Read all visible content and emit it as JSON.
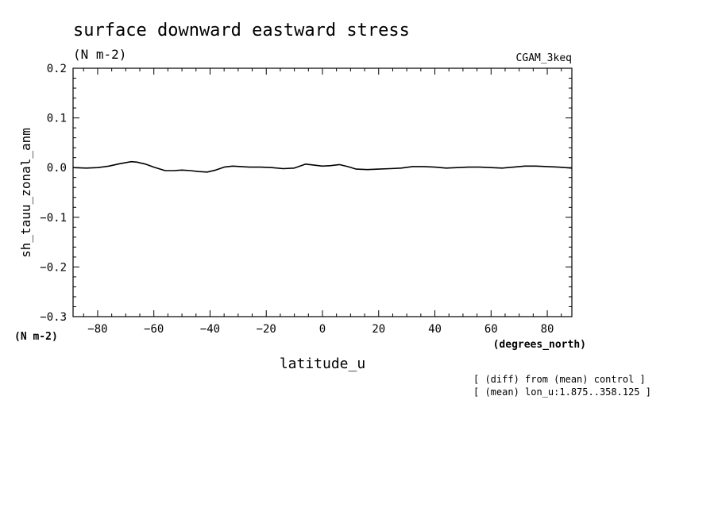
{
  "title": "surface downward eastward stress",
  "units": "(N m-2)",
  "dataset_label": "CGAM_3keq",
  "notes": [
    "[ (diff) from (mean) control ]",
    "[ (mean) lon_u:1.875..358.125 ]"
  ],
  "chart_data": {
    "type": "line",
    "xlabel": "latitude_u",
    "xunits": "(degrees_north)",
    "ylabel": "sh_tauu_zonal_anm",
    "yunits": "(N m-2)",
    "xlim": [
      -88.75,
      88.75
    ],
    "ylim": [
      -0.3,
      0.2
    ],
    "x_ticks": [
      -80,
      -60,
      -40,
      -20,
      0,
      20,
      40,
      60,
      80
    ],
    "x_tick_labels": [
      "−80",
      "−60",
      "−40",
      "−20",
      "0",
      "20",
      "40",
      "60",
      "80"
    ],
    "y_ticks": [
      0.2,
      0.1,
      0.0,
      -0.1,
      -0.2,
      -0.3
    ],
    "y_tick_labels": [
      "0.2",
      "0.1",
      "0.0",
      "−0.1",
      "−0.2",
      "−0.3"
    ],
    "grid": false,
    "series": [
      {
        "x": [
          -88.75,
          -84,
          -80,
          -76,
          -72,
          -68,
          -66,
          -63,
          -60,
          -56,
          -53,
          -50,
          -47,
          -44,
          -41,
          -38,
          -35,
          -32,
          -29,
          -26,
          -22,
          -18,
          -14,
          -10,
          -8,
          -6,
          -3,
          0,
          3,
          6,
          9,
          12,
          16,
          20,
          24,
          28,
          32,
          36,
          40,
          44,
          48,
          52,
          56,
          60,
          64,
          68,
          72,
          76,
          80,
          84,
          88.75
        ],
        "y": [
          0.0,
          -0.001,
          0.0,
          0.003,
          0.008,
          0.012,
          0.011,
          0.007,
          0.001,
          -0.006,
          -0.006,
          -0.005,
          -0.006,
          -0.008,
          -0.009,
          -0.005,
          0.001,
          0.003,
          0.002,
          0.001,
          0.001,
          0.0,
          -0.002,
          -0.001,
          0.003,
          0.007,
          0.005,
          0.003,
          0.004,
          0.006,
          0.002,
          -0.003,
          -0.004,
          -0.003,
          -0.002,
          -0.001,
          0.002,
          0.002,
          0.001,
          -0.001,
          0.0,
          0.001,
          0.001,
          0.0,
          -0.001,
          0.001,
          0.003,
          0.003,
          0.002,
          0.001,
          -0.001
        ]
      }
    ]
  }
}
